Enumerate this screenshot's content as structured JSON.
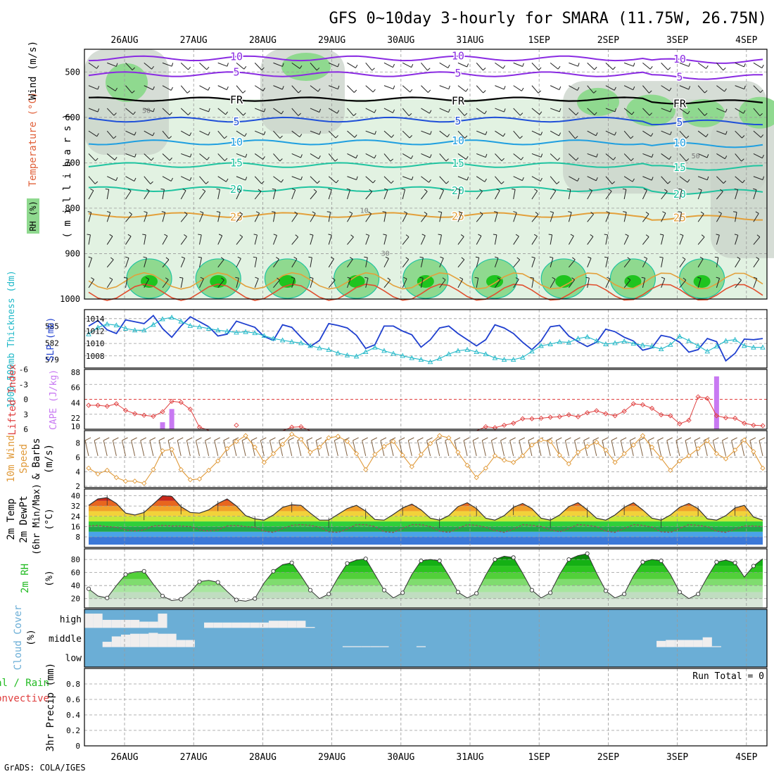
{
  "title": "GFS 0~10day 3-hourly for SMARA (11.75W, 26.75N)",
  "footer": "GrADS: COLA/IGES",
  "colors": {
    "rh_dark": "#1fc41f",
    "rh_mid": "#8fd98f",
    "rh_light": "#e2f2e2",
    "rh_gray": "#c8d2c8",
    "wind_iso": "#8a2be2",
    "freeze": "#000000",
    "t_cool": "#1f4fd8",
    "t_mid": "#1f9fe0",
    "t_warm": "#20c4a0",
    "t_hot": "#e3a03b",
    "t_veryhot": "#e05030",
    "slp": "#1f3fcf",
    "thickness": "#1fb8c8",
    "cape_bar": "#c879f2",
    "lifted": "#e04040",
    "wind10": "#e09a3a",
    "barb": "#806040",
    "rh2m": "#22bb22",
    "cloud_bg": "#6baed6",
    "cloud_bar": "#f0eeee",
    "grid": "#9a9a9a"
  },
  "x_axis": {
    "days": [
      "26AUG",
      "27AUG",
      "28AUG",
      "29AUG",
      "30AUG",
      "31AUG",
      "1SEP",
      "2SEP",
      "3SEP",
      "4SEP"
    ],
    "start_hour_offset": -13.5,
    "total_hours": 237
  },
  "panel_upper": {
    "ylabel_rh": "RH (%)",
    "ylabel_temp": "Temperature (°C)",
    "ylabel_wind": "Wind (m/s)",
    "ylabel_pres": "( m i l l i b a r s )",
    "pressure_ticks": [
      500,
      600,
      700,
      800,
      900,
      1000
    ],
    "pressure_range": [
      1000,
      450
    ],
    "isotherms": [
      {
        "label": "5",
        "base": 605,
        "color_key": "t_cool"
      },
      {
        "label": "10",
        "base": 655,
        "color_key": "t_mid"
      },
      {
        "label": "15",
        "base": 705,
        "color_key": "t_warm"
      },
      {
        "label": "20",
        "base": 758,
        "color_key": "t_warm"
      },
      {
        "label": "25",
        "base": 815,
        "color_key": "t_hot"
      }
    ],
    "freezing_label": "FR",
    "freezing_base": 560,
    "wind_isotachs": [
      {
        "label": "10",
        "base": 470
      },
      {
        "label": "5",
        "base": 505
      }
    ],
    "contour_labels": [
      "50",
      "10",
      "30",
      "50"
    ],
    "rh_labels_inline": [
      "5",
      "10",
      "15",
      "20",
      "25",
      "0"
    ]
  },
  "panel_slp": {
    "ylabel_left": "1000-500mb Thickness (dm)",
    "ylabel_right": "SLP (mb)",
    "thickness_ticks": [
      579,
      582,
      585
    ],
    "slp_ticks": [
      1008,
      1010,
      1012,
      1014
    ],
    "slp_range": [
      1006.5,
      1015
    ],
    "slp": [
      1012.8,
      1013.7,
      1012.2,
      1011.6,
      1013.8,
      1013.5,
      1013.2,
      1014.5,
      1012.4,
      1011.0,
      1012.8,
      1014.3,
      1013.5,
      1012.7,
      1011.2,
      1011.5,
      1013.6,
      1013.1,
      1012.6,
      1011.1,
      1010.5,
      1013.0,
      1012.6,
      1011.0,
      1009.5,
      1010.5,
      1013.2,
      1012.9,
      1012.5,
      1011.3,
      1009.2,
      1009.8,
      1012.8,
      1012.8,
      1012.0,
      1011.4,
      1009.4,
      1010.6,
      1012.5,
      1012.8,
      1011.6,
      1010.6,
      1009.6,
      1010.6,
      1013.0,
      1012.5,
      1011.6,
      1010.2,
      1009.0,
      1010.4,
      1012.7,
      1012.9,
      1011.2,
      1010.3,
      1009.5,
      1010.2,
      1012.3,
      1011.9,
      1011.0,
      1010.4,
      1008.9,
      1009.3,
      1011.3,
      1011.0,
      1010.2,
      1008.6,
      1009.0,
      1010.8,
      1010.3,
      1007.2,
      1008.4,
      1010.7,
      1010.6,
      1010.8
    ],
    "thickness": [
      583.6,
      584.8,
      585.4,
      585.2,
      584.6,
      584.3,
      584.3,
      585.3,
      586.3,
      586.6,
      585.9,
      585.1,
      584.9,
      584.6,
      584.3,
      584.1,
      583.9,
      584.0,
      583.8,
      583.3,
      582.8,
      582.5,
      582.2,
      582.0,
      581.5,
      581.1,
      580.8,
      580.2,
      579.8,
      579.6,
      580.4,
      581.2,
      580.6,
      580.1,
      579.7,
      579.3,
      579.0,
      578.6,
      579.2,
      580.0,
      580.6,
      580.8,
      580.4,
      580.0,
      579.3,
      579.0,
      579.0,
      579.4,
      580.5,
      581.5,
      581.8,
      582.2,
      582.1,
      582.8,
      583.1,
      582.4,
      581.8,
      582.0,
      582.3,
      581.9,
      581.6,
      581.4,
      580.9,
      581.7,
      583.2,
      582.4,
      581.5,
      580.5,
      581.4,
      582.4,
      582.6,
      581.5,
      581.2,
      581.2
    ],
    "thickness_range": [
      578,
      587.5
    ]
  },
  "panel_cape": {
    "ylabel_left": "Lifted Index",
    "ylabel_right": "CAPE (J/kg)",
    "li_ticks": [
      "-6",
      "-3",
      "0",
      "3",
      "6"
    ],
    "cape_ticks": [
      10,
      22,
      44,
      66,
      88
    ],
    "cape_range": [
      10,
      88
    ],
    "lifted_index": [
      1.2,
      1.2,
      1.4,
      0.9,
      2.2,
      2.9,
      3.2,
      3.4,
      2.5,
      0.4,
      0.6,
      2.0,
      5.6,
      6.2,
      6.5,
      6.8,
      5.2,
      6.5,
      6.6,
      6.5,
      6.9,
      6.3,
      5.6,
      5.5,
      6.3,
      6.5,
      6.3,
      6.3,
      6.8,
      6.5,
      6.5,
      6.5,
      6.6,
      6.7,
      6.7,
      6.8,
      6.7,
      6.5,
      6.7,
      6.7,
      6.8,
      6.6,
      6.3,
      5.5,
      5.7,
      5.2,
      4.8,
      3.9,
      3.9,
      3.8,
      3.6,
      3.5,
      3.1,
      3.5,
      2.7,
      2.3,
      2.9,
      3.3,
      2.4,
      0.9,
      1.1,
      1.8,
      3.1,
      3.3,
      4.9,
      4.2,
      -0.5,
      -0.2,
      3.3,
      3.7,
      3.8,
      4.8,
      5.2,
      5.3
    ],
    "cape_bars": [
      {
        "index": 8,
        "value": 16
      },
      {
        "index": 9,
        "value": 35
      },
      {
        "index": 68,
        "value": 82
      }
    ]
  },
  "panel_wind10": {
    "ylabel_1": "10m Wind",
    "ylabel_2": "Speed",
    "ylabel_3": "& Barbs",
    "ylabel_units": "(m/s)",
    "ticks": [
      2,
      4,
      6,
      8
    ],
    "range": [
      2,
      9.5
    ],
    "speed": [
      4.5,
      3.7,
      4.2,
      3.2,
      2.7,
      2.7,
      2.4,
      4.3,
      6.9,
      7.1,
      4.3,
      2.9,
      3.0,
      4.2,
      5.5,
      7.2,
      8.2,
      9.0,
      7.4,
      5.3,
      6.5,
      7.8,
      9.2,
      8.5,
      6.7,
      7.4,
      8.7,
      8.9,
      8.2,
      6.5,
      4.3,
      6.4,
      7.5,
      8.2,
      6.3,
      4.7,
      6.4,
      7.9,
      9.0,
      8.7,
      6.7,
      4.9,
      3.2,
      4.5,
      6.2,
      5.6,
      5.3,
      6.2,
      7.7,
      8.4,
      8.2,
      6.3,
      5.1,
      6.7,
      7.5,
      8.1,
      7.0,
      5.3,
      6.5,
      7.7,
      9.0,
      7.4,
      5.9,
      4.2,
      5.5,
      6.2,
      7.2,
      8.3,
      6.5,
      5.8,
      7.0,
      8.4,
      6.8,
      4.5
    ]
  },
  "panel_temp": {
    "ylabel_1": "2m Temp",
    "ylabel_2": "2m DewPt",
    "ylabel_3": "(6hr Min/Max)",
    "ylabel_units": "(°C)",
    "ticks": [
      8,
      16,
      24,
      32,
      40
    ],
    "range": [
      2,
      43
    ],
    "temp": [
      32.5,
      37.5,
      38.5,
      34.0,
      26.5,
      25.0,
      27.0,
      33.5,
      40.0,
      39.5,
      31.5,
      27.0,
      26.5,
      29.0,
      34.0,
      37.5,
      32.0,
      24.5,
      22.0,
      21.0,
      25.0,
      31.0,
      33.0,
      32.5,
      26.5,
      21.0,
      21.0,
      25.5,
      30.0,
      32.5,
      28.0,
      21.5,
      21.0,
      25.5,
      30.5,
      33.5,
      29.0,
      22.5,
      21.0,
      24.5,
      31.5,
      34.5,
      30.0,
      22.5,
      21.0,
      24.5,
      31.0,
      34.0,
      30.0,
      22.5,
      21.0,
      25.0,
      31.5,
      34.5,
      29.0,
      22.5,
      21.0,
      25.0,
      31.0,
      34.5,
      29.0,
      22.5,
      21.0,
      25.0,
      31.0,
      34.0,
      30.0,
      22.0,
      21.0,
      24.5,
      30.5,
      32.5,
      23.5,
      21.0
    ],
    "dewpt": [
      16.5,
      17.0,
      16.0,
      15.5,
      13.5,
      12.5,
      13.5,
      16.5,
      17.0,
      16.5,
      16.5,
      16.0,
      13.5,
      12.5,
      13.5,
      16.5,
      17.0,
      16.0,
      15.5,
      12.5,
      11.5,
      14.5,
      17.0,
      17.5,
      17.0,
      15.5,
      12.0,
      11.5,
      14.0,
      17.5,
      17.5,
      16.0,
      12.0,
      11.5,
      14.5,
      17.5,
      17.5,
      16.0,
      12.5,
      11.5,
      14.5,
      17.5,
      17.0,
      15.5,
      13.0,
      11.5,
      14.0,
      17.5,
      17.0,
      16.0,
      13.5,
      12.0,
      14.5,
      17.5,
      17.0,
      16.0,
      12.5,
      11.5,
      14.5,
      17.5,
      17.0,
      15.5,
      12.0,
      11.5,
      14.5,
      17.5,
      17.0,
      16.0,
      12.5,
      11.5,
      14.0,
      16.5,
      16.5,
      16.0
    ]
  },
  "panel_rh2m": {
    "ylabel": "2m RH",
    "ylabel_units": "(%)",
    "ticks": [
      20,
      40,
      60,
      80
    ],
    "range": [
      10,
      92
    ],
    "rh": [
      35,
      24,
      21,
      40,
      57,
      61,
      62,
      42,
      24,
      17,
      19,
      30,
      46,
      48,
      45,
      31,
      18,
      16,
      20,
      44,
      62,
      72,
      75,
      55,
      33,
      20,
      27,
      52,
      74,
      79,
      81,
      57,
      33,
      21,
      29,
      57,
      78,
      80,
      78,
      55,
      30,
      21,
      28,
      56,
      80,
      85,
      83,
      59,
      33,
      21,
      29,
      57,
      80,
      86,
      89,
      59,
      32,
      21,
      27,
      55,
      76,
      80,
      78,
      57,
      30,
      20,
      27,
      53,
      76,
      79,
      75,
      53,
      70,
      81
    ]
  },
  "panel_cloud": {
    "ylabel_1": "Cloud Cover",
    "ylabel_units": "(%)",
    "levels": [
      "high",
      "middle",
      "low"
    ],
    "high": [
      80,
      80,
      45,
      45,
      45,
      45,
      35,
      35,
      80,
      0,
      0,
      0,
      0,
      30,
      30,
      30,
      30,
      30,
      30,
      30,
      40,
      40,
      40,
      40,
      5,
      0,
      0,
      0,
      0,
      0,
      0,
      0,
      0,
      0,
      0,
      0,
      0,
      0,
      0,
      0,
      0,
      0,
      0,
      0,
      0,
      0,
      0,
      0,
      0,
      0,
      0,
      0,
      0,
      0,
      0,
      0,
      0,
      0,
      0,
      0,
      0,
      0,
      0,
      0,
      0,
      0,
      0,
      0,
      0,
      0,
      0,
      0,
      0,
      0
    ],
    "middle": [
      0,
      0,
      30,
      60,
      70,
      75,
      75,
      80,
      75,
      75,
      40,
      40,
      0,
      0,
      0,
      0,
      0,
      0,
      0,
      0,
      0,
      0,
      0,
      0,
      0,
      0,
      0,
      0,
      5,
      5,
      5,
      5,
      5,
      0,
      0,
      0,
      5,
      0,
      0,
      0,
      0,
      0,
      0,
      0,
      0,
      0,
      0,
      0,
      0,
      0,
      0,
      0,
      0,
      0,
      0,
      0,
      0,
      0,
      0,
      0,
      0,
      0,
      35,
      40,
      40,
      40,
      40,
      55,
      5,
      0,
      0,
      0,
      0,
      0
    ],
    "low": [
      0,
      0,
      0,
      0,
      0,
      0,
      0,
      0,
      0,
      0,
      0,
      0,
      0,
      0,
      0,
      0,
      0,
      0,
      0,
      0,
      0,
      0,
      0,
      0,
      0,
      0,
      0,
      0,
      0,
      0,
      0,
      0,
      0,
      0,
      0,
      0,
      0,
      0,
      0,
      0,
      0,
      0,
      0,
      0,
      0,
      0,
      0,
      0,
      0,
      0,
      0,
      0,
      0,
      0,
      0,
      0,
      0,
      0,
      0,
      0,
      0,
      0,
      0,
      0,
      0,
      0,
      0,
      0,
      0,
      0,
      0,
      0,
      0,
      0
    ]
  },
  "panel_precip": {
    "ylabel_1": "Total / Rain",
    "ylabel_2": "Convective",
    "ylabel_3": "3hr Precip (mm)",
    "ticks": [
      "0",
      "0.2",
      "0.4",
      "0.6",
      "0.8"
    ],
    "range": [
      0,
      1.0
    ],
    "run_total_label": "Run Total = 0"
  }
}
